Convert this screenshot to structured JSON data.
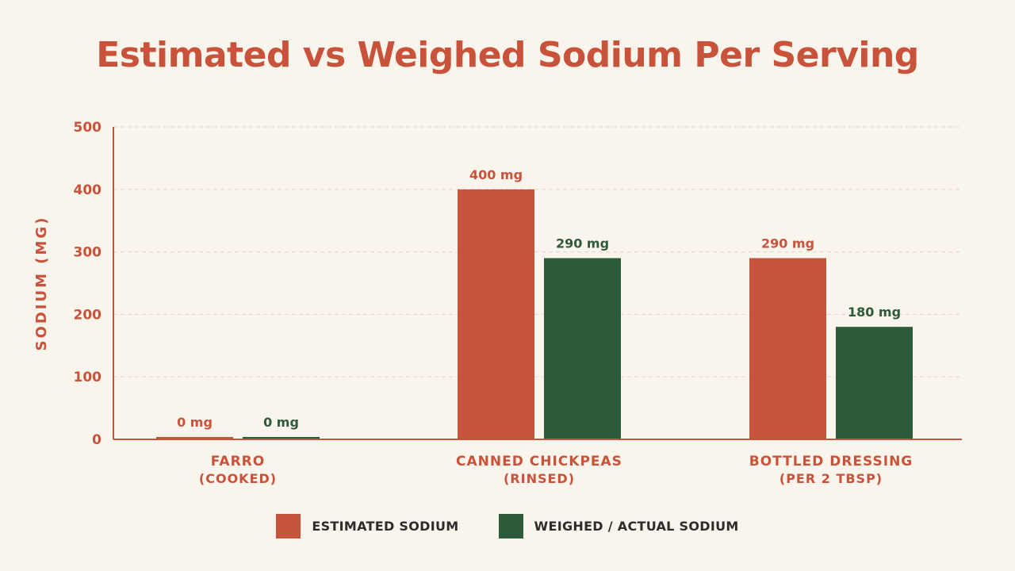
{
  "colors": {
    "background": "#f9f4ec",
    "accent": "#c9533a",
    "estimated": "#c5553a",
    "weighed": "#2d5a3a",
    "grid": "#e4d5c6",
    "legend_text": "#2c2c2c"
  },
  "chart_data": {
    "type": "bar",
    "title": "Estimated vs Weighed Sodium Per Serving",
    "xlabel": "",
    "ylabel": "SODIUM (MG)",
    "ylim": [
      0,
      500
    ],
    "yticks": [
      0,
      100,
      200,
      300,
      400,
      500
    ],
    "grid": true,
    "legend_position": "bottom",
    "categories": [
      {
        "line1": "FARRO",
        "line2": "(COOKED)"
      },
      {
        "line1": "CANNED CHICKPEAS",
        "line2": "(RINSED)"
      },
      {
        "line1": "BOTTLED DRESSING",
        "line2": "(PER 2 TBSP)"
      }
    ],
    "series": [
      {
        "name": "ESTIMATED SODIUM",
        "values": [
          0,
          400,
          290
        ],
        "labels": [
          "0 mg",
          "400 mg",
          "290 mg"
        ]
      },
      {
        "name": "WEIGHED / ACTUAL SODIUM",
        "values": [
          0,
          290,
          180
        ],
        "labels": [
          "0 mg",
          "290 mg",
          "180 mg"
        ]
      }
    ]
  }
}
